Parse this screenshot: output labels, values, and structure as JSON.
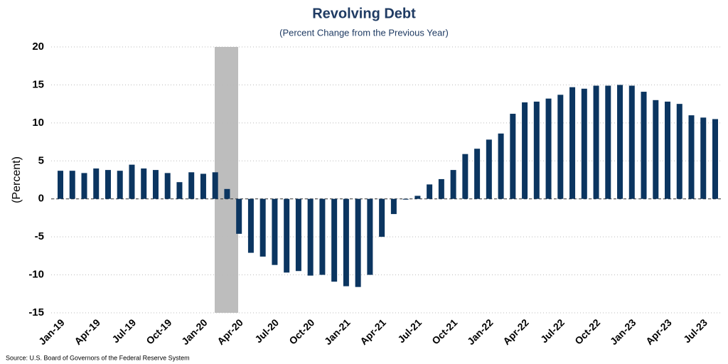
{
  "chart_data": {
    "type": "bar",
    "title": "Revolving Debt",
    "subtitle": "(Percent Change from the Previous Year)",
    "ylabel": "(Percent)",
    "source": "Source: U.S. Board of Governors of the Federal Reserve System",
    "categories": [
      "Jan-19",
      null,
      null,
      "Apr-19",
      null,
      null,
      "Jul-19",
      null,
      null,
      "Oct-19",
      null,
      null,
      "Jan-20",
      null,
      null,
      "Apr-20",
      null,
      null,
      "Jul-20",
      null,
      null,
      "Oct-20",
      null,
      null,
      "Jan-21",
      null,
      null,
      "Apr-21",
      null,
      null,
      "Jul-21",
      null,
      null,
      "Oct-21",
      null,
      null,
      "Jan-22",
      null,
      null,
      "Apr-22",
      null,
      null,
      "Jul-22",
      null,
      null,
      "Oct-22",
      null,
      null,
      "Jan-23",
      null,
      null,
      "Apr-23",
      null,
      null,
      "Jul-23",
      null
    ],
    "values": [
      3.7,
      3.7,
      3.4,
      4.0,
      3.8,
      3.7,
      4.5,
      4.0,
      3.8,
      3.4,
      2.2,
      3.5,
      3.3,
      3.5,
      1.3,
      -4.6,
      -7.1,
      -7.6,
      -8.7,
      -9.7,
      -9.5,
      -10.1,
      -10.0,
      -10.9,
      -11.5,
      -11.6,
      -10.0,
      -5.0,
      -2.0,
      -0.1,
      0.4,
      1.9,
      2.6,
      3.8,
      5.9,
      6.6,
      7.8,
      8.6,
      11.2,
      12.7,
      12.8,
      13.2,
      13.7,
      14.7,
      14.5,
      14.9,
      14.9,
      15.0,
      14.9,
      14.1,
      13.0,
      12.8,
      12.5,
      11.0,
      10.7,
      10.5
    ],
    "color": "#0b3560",
    "ylim": [
      -15,
      20
    ],
    "yticks": [
      -15,
      -10,
      -5,
      0,
      5,
      10,
      15,
      20
    ],
    "grid": true
  }
}
